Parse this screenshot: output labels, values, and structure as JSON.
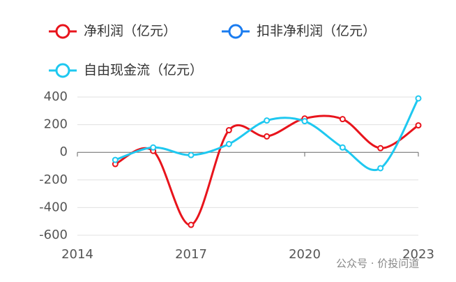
{
  "chart_data": {
    "type": "line",
    "x": [
      2015,
      2016,
      2017,
      2018,
      2019,
      2020,
      2021,
      2022,
      2023
    ],
    "series": [
      {
        "name": "净利润（亿元）",
        "color": "#e8141c",
        "values": [
          -85,
          10,
          -525,
          160,
          115,
          245,
          240,
          30,
          195
        ]
      },
      {
        "name": "扣非净利润（亿元）",
        "color": "#1a7cf0",
        "values": [
          null,
          null,
          null,
          null,
          null,
          null,
          null,
          null,
          null
        ]
      },
      {
        "name": "自由现金流（亿元）",
        "color": "#1ec8f0",
        "values": [
          -55,
          35,
          -20,
          60,
          230,
          225,
          35,
          -115,
          390
        ]
      }
    ],
    "xlim": [
      2014,
      2023
    ],
    "xticks": [
      2014,
      2017,
      2020,
      2023
    ],
    "ylim": [
      -600,
      400
    ],
    "yticks": [
      -600,
      -400,
      -200,
      0,
      200,
      400
    ],
    "grid": true,
    "smooth": true,
    "watermark": "公众号 · 价投问道"
  }
}
